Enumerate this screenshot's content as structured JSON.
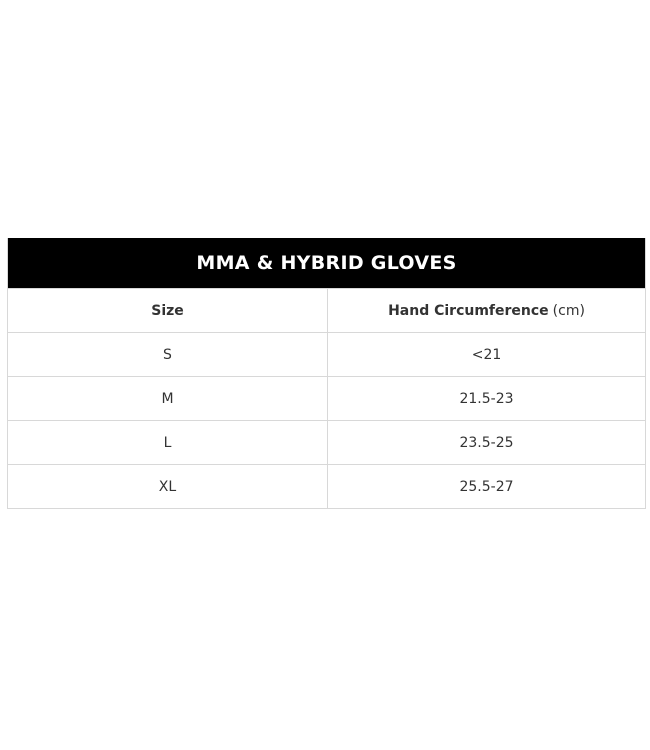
{
  "table": {
    "title": "MMA & HYBRID GLOVES",
    "headers": {
      "size": "Size",
      "circumference": "Hand Circumference",
      "unit": "(cm)"
    },
    "rows": [
      {
        "size": "S",
        "circumference": "<21"
      },
      {
        "size": "M",
        "circumference": "21.5-23"
      },
      {
        "size": "L",
        "circumference": "23.5-25"
      },
      {
        "size": "XL",
        "circumference": "25.5-27"
      }
    ]
  }
}
